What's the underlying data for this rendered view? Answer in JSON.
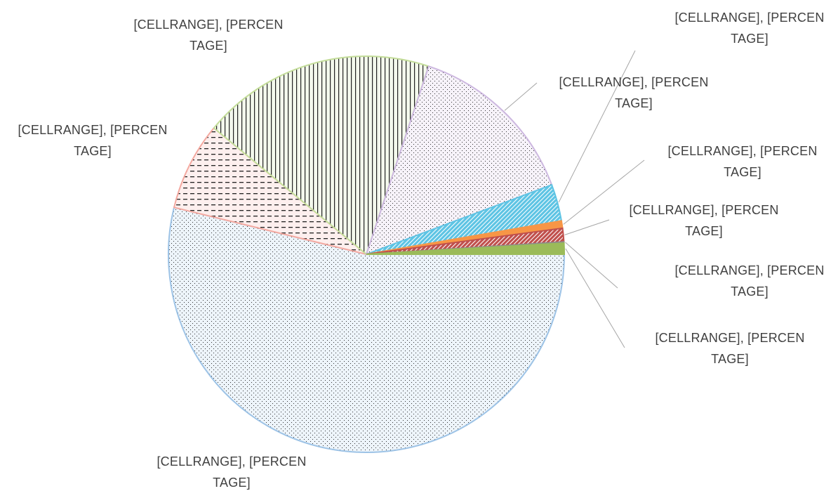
{
  "chart_data": {
    "type": "pie",
    "labels": [
      "[CELLRANGE], [PERCENTAGE]",
      "[CELLRANGE], [PERCENTAGE]",
      "[CELLRANGE], [PERCENTAGE]",
      "[CELLRANGE], [PERCENTAGE]",
      "[CELLRANGE], [PERCENTAGE]",
      "[CELLRANGE], [PERCENTAGE]",
      "[CELLRANGE], [PERCENTAGE]",
      "[CELLRANGE], [PERCENTAGE]",
      "[CELLRANGE], [PERCENTAGE]"
    ],
    "values": [
      53.8,
      7.2,
      19.1,
      14.2,
      3.0,
      0.6,
      1.1,
      0.1,
      0.9
    ],
    "colors": [
      "#9dc3e6",
      "#f4a9a0",
      "#c4dd9a",
      "#cdb8e0",
      "#5ec4e4",
      "#f79646",
      "#c0504d",
      "#8c8c8c",
      "#9bbb59"
    ],
    "patterns": [
      "dots",
      "dashes",
      "vertical",
      "dots",
      "diagonal",
      "solid",
      "diagonal",
      "solid",
      "solid"
    ]
  }
}
